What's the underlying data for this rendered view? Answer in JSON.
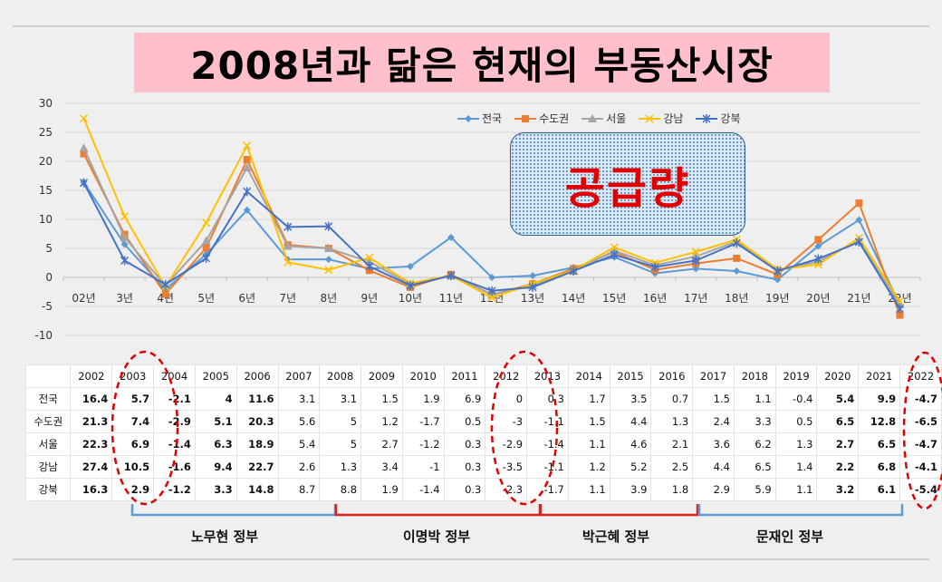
{
  "title": "2008년과 닮은 현재의 부동산시장",
  "annotation": "공급량",
  "chart_data": {
    "type": "line",
    "categories": [
      "02년",
      "3년",
      "4년",
      "5년",
      "6년",
      "7년",
      "8년",
      "9년",
      "10년",
      "11년",
      "12년",
      "13년",
      "14년",
      "15년",
      "16년",
      "17년",
      "18년",
      "19년",
      "20년",
      "21년",
      "22년"
    ],
    "ylim": [
      -10,
      30
    ],
    "yticks": [
      -10,
      -5,
      0,
      5,
      10,
      15,
      20,
      25,
      30
    ],
    "grid": true,
    "legend_position": "top-right",
    "series": [
      {
        "name": "전국",
        "color": "#5b9bd5",
        "marker": "diamond",
        "values": [
          16.4,
          5.7,
          -2.1,
          4,
          11.6,
          3.1,
          3.1,
          1.5,
          1.9,
          6.9,
          0,
          0.3,
          1.7,
          3.5,
          0.7,
          1.5,
          1.1,
          -0.4,
          5.4,
          9.9,
          -4.7
        ]
      },
      {
        "name": "수도권",
        "color": "#ed7d31",
        "marker": "square",
        "values": [
          21.3,
          7.4,
          -2.9,
          5.1,
          20.3,
          5.6,
          5,
          1.2,
          -1.7,
          0.5,
          -3,
          -1.1,
          1.5,
          4.4,
          1.3,
          2.4,
          3.3,
          0.5,
          6.5,
          12.8,
          -6.5
        ]
      },
      {
        "name": "서울",
        "color": "#a5a5a5",
        "marker": "triangle",
        "values": [
          22.3,
          6.9,
          -1.4,
          6.3,
          18.9,
          5.4,
          5,
          2.7,
          -1.2,
          0.3,
          -2.9,
          -1.4,
          1.1,
          4.6,
          2.1,
          3.6,
          6.2,
          1.3,
          2.7,
          6.5,
          -4.7
        ]
      },
      {
        "name": "강남",
        "color": "#ffc000",
        "marker": "x",
        "values": [
          27.4,
          10.5,
          -1.6,
          9.4,
          22.7,
          2.6,
          1.3,
          3.4,
          -1,
          0.3,
          -3.5,
          -1.1,
          1.2,
          5.2,
          2.5,
          4.4,
          6.5,
          1.4,
          2.2,
          6.8,
          -4.1
        ]
      },
      {
        "name": "강북",
        "color": "#4472c4",
        "marker": "star",
        "values": [
          16.3,
          2.9,
          -1.2,
          3.3,
          14.8,
          8.7,
          8.8,
          1.9,
          -1.4,
          0.3,
          -2.3,
          -1.7,
          1.1,
          3.9,
          1.8,
          2.9,
          5.9,
          1.1,
          3.2,
          6.1,
          -5.4
        ]
      }
    ]
  },
  "table": {
    "years": [
      "2002",
      "2003",
      "2004",
      "2005",
      "2006",
      "2007",
      "2008",
      "2009",
      "2010",
      "2011",
      "2012",
      "2013",
      "2014",
      "2015",
      "2016",
      "2017",
      "2018",
      "2019",
      "2020",
      "2021",
      "2022"
    ],
    "rows": [
      {
        "label": "전국",
        "values": [
          "16.4",
          "5.7",
          "-2.1",
          "4",
          "11.6",
          "3.1",
          "3.1",
          "1.5",
          "1.9",
          "6.9",
          "0",
          "0.3",
          "1.7",
          "3.5",
          "0.7",
          "1.5",
          "1.1",
          "-0.4",
          "5.4",
          "9.9",
          "-4.7"
        ]
      },
      {
        "label": "수도권",
        "values": [
          "21.3",
          "7.4",
          "-2.9",
          "5.1",
          "20.3",
          "5.6",
          "5",
          "1.2",
          "-1.7",
          "0.5",
          "-3",
          "-1.1",
          "1.5",
          "4.4",
          "1.3",
          "2.4",
          "3.3",
          "0.5",
          "6.5",
          "12.8",
          "-6.5"
        ]
      },
      {
        "label": "서울",
        "values": [
          "22.3",
          "6.9",
          "-1.4",
          "6.3",
          "18.9",
          "5.4",
          "5",
          "2.7",
          "-1.2",
          "0.3",
          "-2.9",
          "-1.4",
          "1.1",
          "4.6",
          "2.1",
          "3.6",
          "6.2",
          "1.3",
          "2.7",
          "6.5",
          "-4.7"
        ]
      },
      {
        "label": "강남",
        "values": [
          "27.4",
          "10.5",
          "-1.6",
          "9.4",
          "22.7",
          "2.6",
          "1.3",
          "3.4",
          "-1",
          "0.3",
          "-3.5",
          "-1.1",
          "1.2",
          "5.2",
          "2.5",
          "4.4",
          "6.5",
          "1.4",
          "2.2",
          "6.8",
          "-4.1"
        ]
      },
      {
        "label": "강북",
        "values": [
          "16.3",
          "2.9",
          "-1.2",
          "3.3",
          "14.8",
          "8.7",
          "8.8",
          "1.9",
          "-1.4",
          "0.3",
          "-2.3",
          "-1.7",
          "1.1",
          "3.9",
          "1.8",
          "2.9",
          "5.9",
          "1.1",
          "3.2",
          "6.1",
          "-5.4"
        ]
      }
    ],
    "highlight_colors": {
      "positive": "#1e6fc0",
      "negative": "#e02020"
    },
    "highlight_columns": {
      "positive": [
        "2002",
        "2003",
        "2005",
        "2006",
        "2020",
        "2021"
      ],
      "negative": [
        "2004",
        "2022"
      ]
    }
  },
  "eras": [
    {
      "label": "노무현 정부",
      "color": "#5b9bd5"
    },
    {
      "label": "이명박 정부",
      "color": "#e02020"
    },
    {
      "label": "박근혜 정부",
      "color": "#e02020"
    },
    {
      "label": "문재인 정부",
      "color": "#5b9bd5"
    }
  ]
}
